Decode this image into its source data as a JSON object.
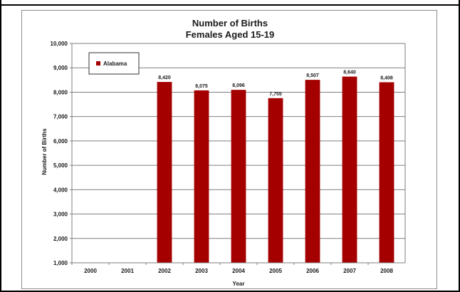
{
  "chart_data": {
    "type": "bar",
    "title": [
      "Number of Births",
      "Females Aged 15-19"
    ],
    "xlabel": "Year",
    "ylabel": "Number of Births",
    "categories": [
      "2000",
      "2001",
      "2002",
      "2003",
      "2004",
      "2005",
      "2006",
      "2007",
      "2008"
    ],
    "series": [
      {
        "name": "Alabama",
        "color": "#a50000",
        "values": [
          null,
          null,
          8420,
          8075,
          8096,
          7755,
          8507,
          8640,
          8408
        ],
        "labels": [
          "",
          "",
          "8,420",
          "8,075",
          "8,096",
          "7,755",
          "8,507",
          "8,640",
          "8,408"
        ]
      }
    ],
    "ylim": [
      1000,
      10000
    ],
    "yticks": [
      1000,
      2000,
      3000,
      4000,
      5000,
      6000,
      7000,
      8000,
      9000,
      10000
    ],
    "ytick_labels": [
      "1,000",
      "2,000",
      "3,000",
      "4,000",
      "5,000",
      "6,000",
      "7,000",
      "8,000",
      "9,000",
      "10,000"
    ],
    "grid": "horizontal",
    "legend": "top-left"
  }
}
